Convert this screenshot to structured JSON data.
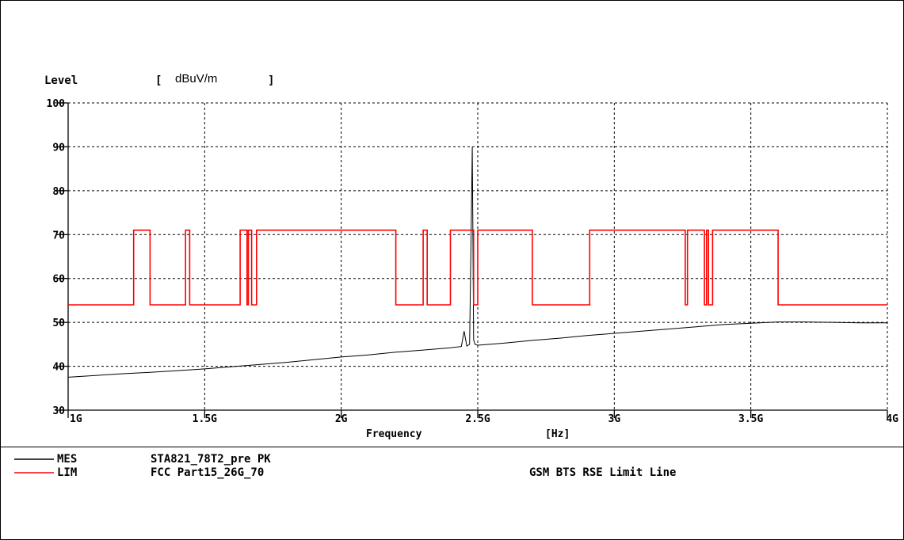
{
  "chart_data": {
    "type": "line",
    "ylabel": "Level",
    "yunit": "dBuV/m",
    "xlabel": "Frequency",
    "xunit": "[Hz]",
    "ylim": [
      30,
      100
    ],
    "xlim": [
      1.0,
      4.0
    ],
    "y_ticks": [
      "30",
      "40",
      "50",
      "60",
      "70",
      "80",
      "90",
      "100"
    ],
    "x_ticks": [
      {
        "v": 1.0,
        "label": "1G"
      },
      {
        "v": 1.5,
        "label": "1.5G"
      },
      {
        "v": 2.0,
        "label": "2G"
      },
      {
        "v": 2.5,
        "label": "2.5G"
      },
      {
        "v": 3.0,
        "label": "3G"
      },
      {
        "v": 3.5,
        "label": "3.5G"
      },
      {
        "v": 4.0,
        "label": "4G"
      }
    ],
    "grid": true,
    "series": [
      {
        "name": "MES",
        "color": "#000000",
        "description": "STA821_78T2_pre PK",
        "points": [
          [
            1.0,
            37.5
          ],
          [
            1.1,
            37.9
          ],
          [
            1.2,
            38.3
          ],
          [
            1.3,
            38.6
          ],
          [
            1.4,
            39.0
          ],
          [
            1.5,
            39.4
          ],
          [
            1.6,
            39.9
          ],
          [
            1.7,
            40.4
          ],
          [
            1.8,
            40.9
          ],
          [
            1.9,
            41.5
          ],
          [
            2.0,
            42.1
          ],
          [
            2.1,
            42.6
          ],
          [
            2.2,
            43.2
          ],
          [
            2.3,
            43.7
          ],
          [
            2.4,
            44.2
          ],
          [
            2.44,
            44.5
          ],
          [
            2.45,
            48.0
          ],
          [
            2.46,
            44.6
          ],
          [
            2.47,
            45.0
          ],
          [
            2.475,
            67.0
          ],
          [
            2.48,
            90.0
          ],
          [
            2.485,
            46.0
          ],
          [
            2.49,
            45.0
          ],
          [
            2.5,
            44.8
          ],
          [
            2.6,
            45.3
          ],
          [
            2.7,
            45.9
          ],
          [
            2.8,
            46.4
          ],
          [
            2.9,
            47.0
          ],
          [
            3.0,
            47.5
          ],
          [
            3.1,
            48.0
          ],
          [
            3.2,
            48.5
          ],
          [
            3.3,
            49.0
          ],
          [
            3.4,
            49.5
          ],
          [
            3.5,
            49.8
          ],
          [
            3.6,
            50.1
          ],
          [
            3.7,
            50.1
          ],
          [
            3.8,
            50.0
          ],
          [
            3.9,
            49.9
          ],
          [
            4.0,
            49.9
          ]
        ]
      },
      {
        "name": "LIM",
        "color": "#ff0000",
        "description": "FCC Part15_26G_70",
        "note": "GSM BTS RSE Limit Line",
        "points": [
          [
            1.0,
            54.0
          ],
          [
            1.24,
            54.0
          ],
          [
            1.24,
            71.0
          ],
          [
            1.3,
            71.0
          ],
          [
            1.3,
            54.0
          ],
          [
            1.43,
            54.0
          ],
          [
            1.43,
            71.0
          ],
          [
            1.445,
            71.0
          ],
          [
            1.445,
            54.0
          ],
          [
            1.63,
            54.0
          ],
          [
            1.63,
            71.0
          ],
          [
            1.655,
            71.0
          ],
          [
            1.655,
            54.0
          ],
          [
            1.66,
            54.0
          ],
          [
            1.66,
            71.0
          ],
          [
            1.672,
            71.0
          ],
          [
            1.672,
            54.0
          ],
          [
            1.69,
            54.0
          ],
          [
            1.69,
            71.0
          ],
          [
            2.2,
            71.0
          ],
          [
            2.2,
            54.0
          ],
          [
            2.3,
            54.0
          ],
          [
            2.3,
            71.0
          ],
          [
            2.315,
            71.0
          ],
          [
            2.315,
            54.0
          ],
          [
            2.4,
            54.0
          ],
          [
            2.4,
            71.0
          ],
          [
            2.485,
            71.0
          ],
          [
            2.485,
            54.0
          ],
          [
            2.5,
            54.0
          ],
          [
            2.5,
            71.0
          ],
          [
            2.7,
            71.0
          ],
          [
            2.7,
            54.0
          ],
          [
            2.91,
            54.0
          ],
          [
            2.91,
            71.0
          ],
          [
            3.26,
            71.0
          ],
          [
            3.26,
            54.0
          ],
          [
            3.268,
            54.0
          ],
          [
            3.268,
            71.0
          ],
          [
            3.33,
            71.0
          ],
          [
            3.33,
            54.0
          ],
          [
            3.338,
            54.0
          ],
          [
            3.338,
            71.0
          ],
          [
            3.345,
            71.0
          ],
          [
            3.345,
            54.0
          ],
          [
            3.36,
            54.0
          ],
          [
            3.36,
            71.0
          ],
          [
            3.6,
            71.0
          ],
          [
            3.6,
            54.0
          ],
          [
            4.0,
            54.0
          ]
        ]
      }
    ]
  },
  "legend": [
    {
      "tag": "MES",
      "text": "STA821_78T2_pre PK",
      "extra": "",
      "color": "#000000"
    },
    {
      "tag": "LIM",
      "text": "FCC Part15_26G_70",
      "extra": "GSM BTS RSE Limit Line",
      "color": "#ff0000"
    }
  ],
  "bracket_open": "[",
  "bracket_close": "]"
}
